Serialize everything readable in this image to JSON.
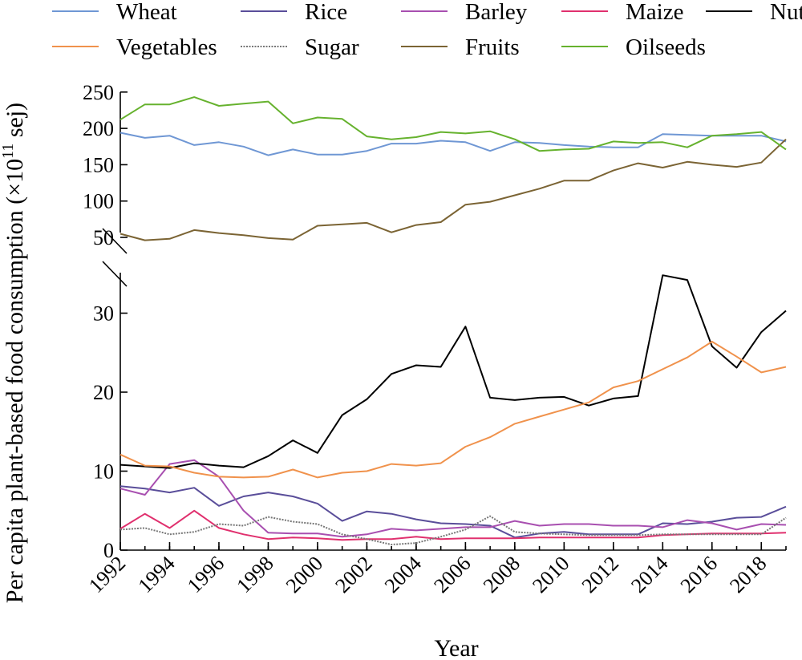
{
  "chart_data": {
    "type": "line",
    "xlabel": "Year",
    "ylabel": "Per capita plant-based food consumption (×10",
    "ylabel_exp": "11",
    "ylabel_unit": " sej)",
    "x": [
      1992,
      1993,
      1994,
      1995,
      1996,
      1997,
      1998,
      1999,
      2000,
      2001,
      2002,
      2003,
      2004,
      2005,
      2006,
      2007,
      2008,
      2009,
      2010,
      2011,
      2012,
      2013,
      2014,
      2015,
      2016,
      2017,
      2018,
      2019
    ],
    "x_ticks": [
      "1992",
      "1994",
      "1996",
      "1998",
      "2000",
      "2002",
      "2004",
      "2006",
      "2008",
      "2010",
      "2012",
      "2014",
      "2016",
      "2018"
    ],
    "axis_break": true,
    "lower_ylim": [
      0,
      35
    ],
    "lower_yticks": [
      "0",
      "10",
      "20",
      "30"
    ],
    "upper_ylim": [
      40,
      250
    ],
    "upper_yticks": [
      "50",
      "100",
      "150",
      "200",
      "250"
    ],
    "legend_position": "top",
    "series": [
      {
        "name": "Wheat",
        "color": "#6f97d4",
        "values": [
          194,
          187,
          190,
          177,
          181,
          175,
          163,
          171,
          164,
          164,
          169,
          179,
          179,
          183,
          181,
          169,
          181,
          180,
          177,
          175,
          174,
          174,
          192,
          191,
          190,
          190,
          190,
          182
        ]
      },
      {
        "name": "Rice",
        "color": "#5a4e9a",
        "values": [
          8.1,
          7.8,
          7.3,
          7.9,
          5.6,
          6.8,
          7.3,
          6.8,
          5.9,
          3.7,
          4.9,
          4.6,
          3.9,
          3.4,
          3.3,
          3.1,
          1.6,
          2.1,
          2.3,
          2.0,
          2.0,
          2.0,
          3.4,
          3.3,
          3.6,
          4.1,
          4.2,
          5.5
        ]
      },
      {
        "name": "Barley",
        "color": "#a84fb0",
        "values": [
          7.8,
          7.0,
          10.9,
          11.4,
          9.3,
          5.0,
          2.2,
          2.1,
          2.1,
          1.7,
          2.0,
          2.7,
          2.5,
          2.7,
          2.9,
          2.9,
          3.7,
          3.1,
          3.3,
          3.3,
          3.1,
          3.1,
          2.9,
          3.8,
          3.4,
          2.6,
          3.3,
          3.2
        ]
      },
      {
        "name": "Maize",
        "color": "#e0306e",
        "values": [
          2.7,
          4.6,
          2.8,
          5.0,
          2.8,
          2.0,
          1.4,
          1.6,
          1.5,
          1.3,
          1.4,
          1.4,
          1.7,
          1.4,
          1.5,
          1.5,
          1.5,
          1.6,
          1.6,
          1.6,
          1.6,
          1.6,
          1.9,
          2.0,
          2.1,
          2.1,
          2.1,
          2.2
        ]
      },
      {
        "name": "Nuts",
        "color": "#000000",
        "values": [
          10.8,
          10.6,
          10.4,
          11.0,
          10.7,
          10.5,
          11.9,
          13.9,
          12.3,
          17.1,
          19.1,
          22.3,
          23.4,
          23.2,
          28.3,
          19.3,
          19.0,
          19.3,
          19.4,
          18.3,
          19.2,
          19.5,
          34.8,
          34.2,
          25.8,
          23.1,
          27.6,
          30.3
        ]
      },
      {
        "name": "Vegetables",
        "color": "#f0924c",
        "values": [
          12.1,
          10.7,
          10.6,
          9.8,
          9.3,
          9.2,
          9.3,
          10.2,
          9.2,
          9.8,
          10.0,
          10.9,
          10.7,
          11.0,
          13.1,
          14.3,
          16.0,
          16.9,
          17.8,
          18.7,
          20.6,
          21.4,
          22.9,
          24.4,
          26.4,
          24.5,
          22.5,
          23.2
        ]
      },
      {
        "name": "Sugar",
        "color": "#777777",
        "values": [
          2.6,
          2.8,
          2.0,
          2.3,
          3.3,
          3.1,
          4.2,
          3.6,
          3.3,
          2.0,
          1.4,
          0.7,
          0.9,
          1.7,
          2.6,
          4.3,
          2.3,
          2.1,
          2.0,
          1.9,
          1.9,
          1.9,
          2.0,
          2.0,
          2.0,
          2.0,
          2.0,
          4.1
        ]
      },
      {
        "name": "Fruits",
        "color": "#7b6434",
        "values": [
          55,
          46,
          48,
          60,
          56,
          53,
          49,
          47,
          66,
          68,
          70,
          57,
          67,
          71,
          95,
          99,
          108,
          117,
          128,
          128,
          142,
          152,
          146,
          154,
          150,
          147,
          153,
          185
        ]
      },
      {
        "name": "Oilseeds",
        "color": "#66b22e",
        "values": [
          212,
          233,
          233,
          243,
          231,
          234,
          237,
          207,
          215,
          213,
          189,
          185,
          188,
          195,
          193,
          196,
          185,
          169,
          171,
          172,
          182,
          180,
          181,
          174,
          190,
          192,
          195,
          171
        ]
      }
    ]
  }
}
